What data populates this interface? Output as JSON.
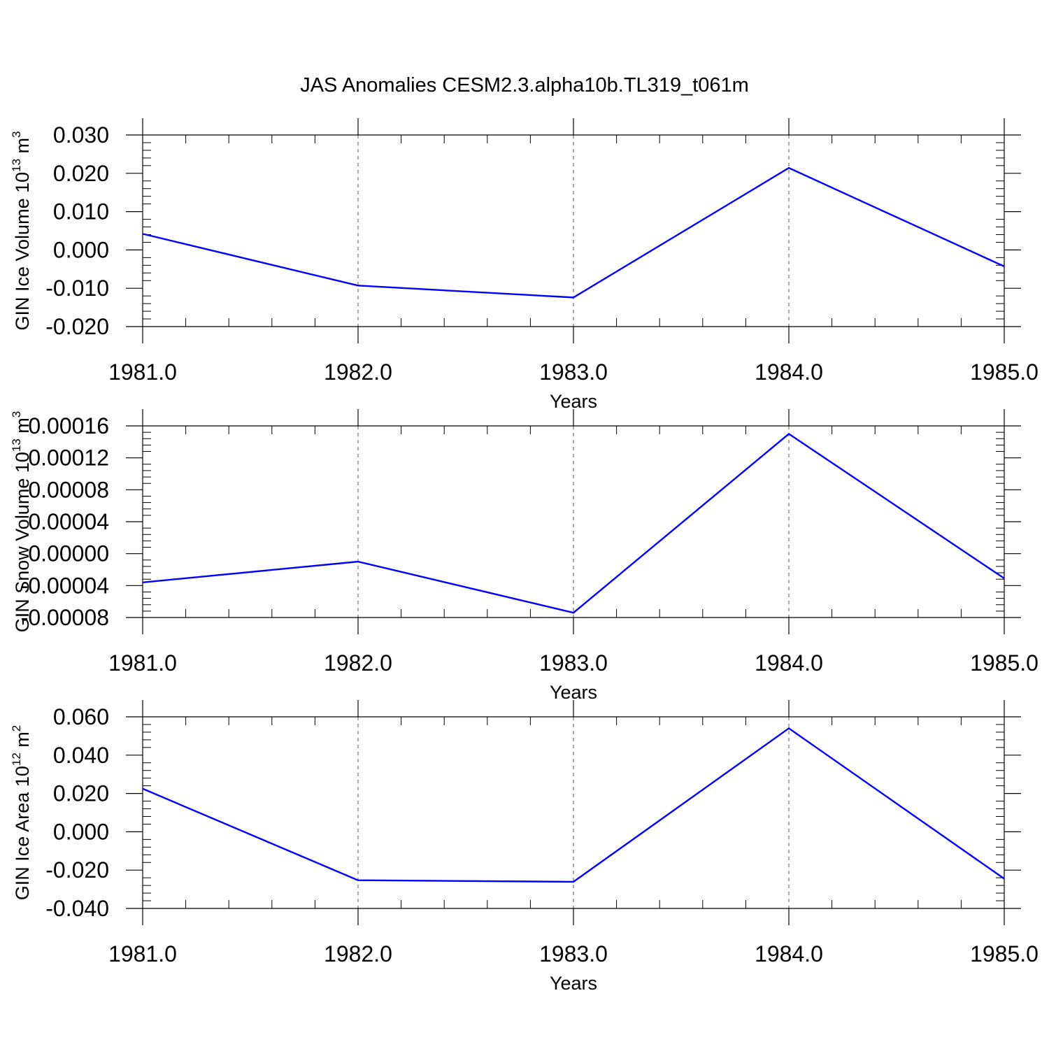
{
  "figure": {
    "title": "JAS Anomalies CESM2.3.alpha10b.TL319_t061m"
  },
  "chart_data": [
    {
      "type": "line",
      "title": "",
      "xlabel": "Years",
      "ylabel": {
        "main": "GIN Ice Volume 10",
        "sup": "13",
        "unit": " m",
        "unit_sup": "3"
      },
      "x": [
        1981,
        1982,
        1983,
        1984,
        1985
      ],
      "x_tick_labels": [
        "1981.0",
        "1982.0",
        "1983.0",
        "1984.0",
        "1985.0"
      ],
      "xlim": [
        1981,
        1985
      ],
      "ylim": [
        -0.02,
        0.03
      ],
      "y_ticks": [
        -0.02,
        -0.01,
        0.0,
        0.01,
        0.02,
        0.03
      ],
      "y_tick_labels": [
        "-0.020",
        "-0.010",
        "0.000",
        "0.010",
        "0.020",
        "0.030"
      ],
      "series": [
        {
          "values": [
            0.0042,
            -0.0093,
            -0.0124,
            0.0214,
            -0.0043
          ],
          "color": "#0000ff"
        }
      ],
      "grid": "vertical dashed at major x ticks"
    },
    {
      "type": "line",
      "title": "",
      "xlabel": "Years",
      "ylabel": {
        "main": "GIN Snow Volume 10",
        "sup": "13",
        "unit": " m",
        "unit_sup": "3"
      },
      "x": [
        1981,
        1982,
        1983,
        1984,
        1985
      ],
      "x_tick_labels": [
        "1981.0",
        "1982.0",
        "1983.0",
        "1984.0",
        "1985.0"
      ],
      "xlim": [
        1981,
        1985
      ],
      "ylim": [
        -8e-05,
        0.00016
      ],
      "y_ticks": [
        -8e-05,
        -4e-05,
        0.0,
        4e-05,
        8e-05,
        0.00012,
        0.00016
      ],
      "y_tick_labels": [
        "-0.00008",
        "-0.00004",
        "0.00000",
        "0.00004",
        "0.00008",
        "0.00012",
        "0.00016"
      ],
      "series": [
        {
          "values": [
            -3.6e-05,
            -1e-05,
            -7.4e-05,
            0.00015,
            -3.1e-05
          ],
          "color": "#0000ff"
        }
      ],
      "grid": "vertical dashed at major x ticks"
    },
    {
      "type": "line",
      "title": "",
      "xlabel": "Years",
      "ylabel": {
        "main": "GIN Ice Area 10",
        "sup": "12",
        "unit": " m",
        "unit_sup": "2"
      },
      "x": [
        1981,
        1982,
        1983,
        1984,
        1985
      ],
      "x_tick_labels": [
        "1981.0",
        "1982.0",
        "1983.0",
        "1984.0",
        "1985.0"
      ],
      "xlim": [
        1981,
        1985
      ],
      "ylim": [
        -0.04,
        0.06
      ],
      "y_ticks": [
        -0.04,
        -0.02,
        0.0,
        0.02,
        0.04,
        0.06
      ],
      "y_tick_labels": [
        "-0.040",
        "-0.020",
        "0.000",
        "0.020",
        "0.040",
        "0.060"
      ],
      "series": [
        {
          "values": [
            0.0225,
            -0.0253,
            -0.0261,
            0.054,
            -0.0245
          ],
          "color": "#0000ff"
        }
      ],
      "grid": "vertical dashed at major x ticks"
    }
  ]
}
